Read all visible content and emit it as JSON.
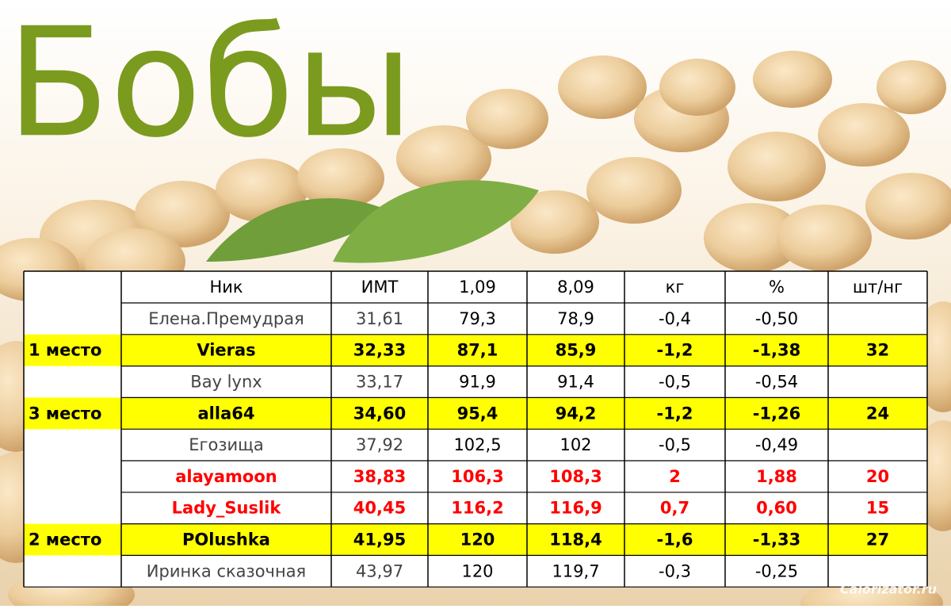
{
  "title": "Бобы",
  "watermark": "Calorizator.ru",
  "table": {
    "header": [
      null,
      "Ник",
      "ИМТ",
      "1,09",
      "8,09",
      "кг",
      "%",
      "шт/нг"
    ],
    "rows": [
      {
        "cells": [
          null,
          "Елена.Премудрая",
          "31,61",
          "79,3",
          "78,9",
          "-0,4",
          "-0,50",
          null
        ],
        "fill": "#ffffff",
        "text_color": "#000000",
        "bold": false
      },
      {
        "cells": [
          "1 место",
          "Vieras",
          "32,33",
          "87,1",
          "85,9",
          "-1,2",
          "-1,38",
          "32"
        ],
        "fill": "#ffff00",
        "text_color": "#000000",
        "bold": true
      },
      {
        "cells": [
          null,
          "Bay lynx",
          "33,17",
          "91,9",
          "91,4",
          "-0,5",
          "-0,54",
          null
        ],
        "fill": "#ffffff",
        "text_color": "#000000",
        "bold": false
      },
      {
        "cells": [
          "3 место",
          "alla64",
          "34,60",
          "95,4",
          "94,2",
          "-1,2",
          "-1,26",
          "24"
        ],
        "fill": "#ffff00",
        "text_color": "#000000",
        "bold": true
      },
      {
        "cells": [
          null,
          "Егозища",
          "37,92",
          "102,5",
          "102",
          "-0,5",
          "-0,49",
          null
        ],
        "fill": "#ffffff",
        "text_color": "#000000",
        "bold": false
      },
      {
        "cells": [
          null,
          "alayamoon",
          "38,83",
          "106,3",
          "108,3",
          "2",
          "1,88",
          "20"
        ],
        "fill": "#ffffff",
        "text_color": "#ff0000",
        "bold": true
      },
      {
        "cells": [
          null,
          "Lady_Suslik",
          "40,45",
          "116,2",
          "116,9",
          "0,7",
          "0,60",
          "15"
        ],
        "fill": "#ffffff",
        "text_color": "#ff0000",
        "bold": true
      },
      {
        "cells": [
          "2 место",
          "POlushka",
          "41,95",
          "120",
          "118,4",
          "-1,6",
          "-1,33",
          "27"
        ],
        "fill": "#ffff00",
        "text_color": "#000000",
        "bold": true
      },
      {
        "cells": [
          null,
          "Иринка сказочная",
          "43,97",
          "120",
          "119,7",
          "-0,3",
          "-0,25",
          null
        ],
        "fill": "#ffffff",
        "text_color": "#000000",
        "bold": false
      }
    ]
  }
}
